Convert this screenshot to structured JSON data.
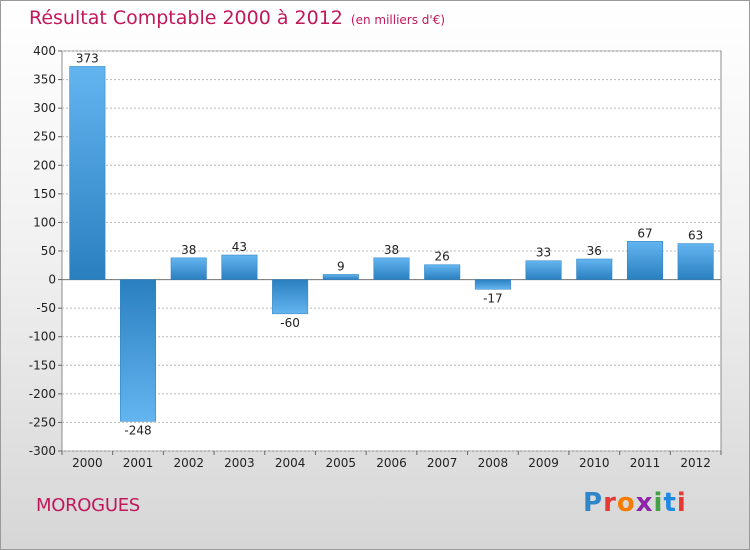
{
  "title": "Résultat Comptable 2000 à 2012",
  "unit": "(en milliers d'€)",
  "commune": "MOROGUES",
  "brand": {
    "text": "Proxiti",
    "colors": [
      "#2e86c9",
      "#e53935",
      "#f57c00",
      "#8e24aa",
      "#43a047",
      "#1e88e5",
      "#e53935"
    ]
  },
  "chart_data": {
    "type": "bar",
    "categories": [
      "2000",
      "2001",
      "2002",
      "2003",
      "2004",
      "2005",
      "2006",
      "2007",
      "2008",
      "2009",
      "2010",
      "2011",
      "2012"
    ],
    "values": [
      373,
      -248,
      38,
      43,
      -60,
      9,
      38,
      26,
      -17,
      33,
      36,
      67,
      63
    ],
    "value_labels": [
      "373",
      "-248",
      "38",
      "43",
      "-60",
      "9",
      "38",
      "26",
      "-17",
      "33",
      "36",
      "67",
      "63"
    ],
    "ylim": [
      -300,
      400
    ],
    "yticks": [
      400,
      350,
      300,
      250,
      200,
      150,
      100,
      50,
      0,
      -50,
      -100,
      -150,
      -200,
      -250,
      -300
    ],
    "ytick_labels": [
      "400",
      "350",
      "300",
      "250",
      "200",
      "150",
      "100",
      "50",
      "0",
      "-50",
      "-100",
      "-150",
      "-200",
      "-250",
      "-300"
    ],
    "grid": true,
    "bar_color": "#3d9be0"
  }
}
